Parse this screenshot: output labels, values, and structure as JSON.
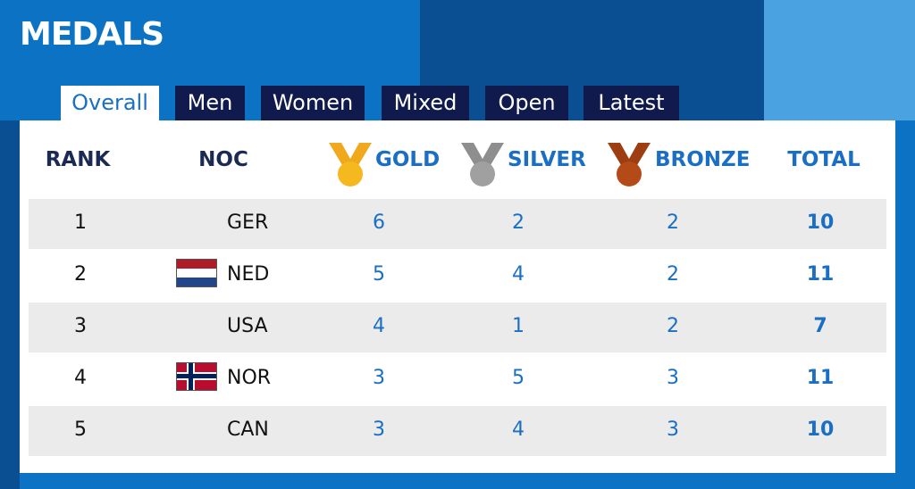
{
  "header": {
    "title": "MEDALS"
  },
  "tabs": [
    "Overall",
    "Men",
    "Women",
    "Mixed",
    "Open",
    "Latest"
  ],
  "table": {
    "columns": [
      "RANK",
      "NOC",
      "GOLD",
      "SILVER",
      "BRONZE",
      "TOTAL"
    ],
    "rows": [
      [
        1,
        "GER",
        6,
        2,
        2,
        10
      ],
      [
        2,
        "NED",
        5,
        4,
        2,
        11
      ],
      [
        3,
        "USA",
        4,
        1,
        2,
        7
      ],
      [
        4,
        "NOR",
        3,
        5,
        3,
        11
      ],
      [
        5,
        "CAN",
        3,
        4,
        3,
        10
      ]
    ]
  }
}
